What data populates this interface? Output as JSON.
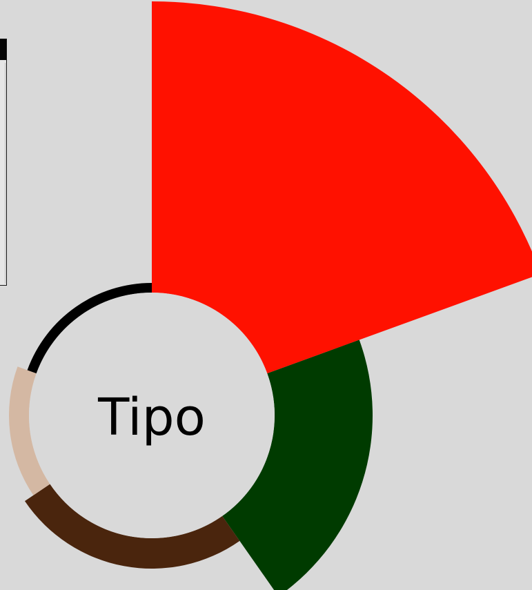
{
  "chart_data": {
    "type": "pie",
    "subtype": "radial-sunburst",
    "center_label": "Tipo",
    "title": "",
    "segments": [
      {
        "start_deg": 0,
        "end_deg": 70,
        "radius": 600,
        "color": "#ff1100"
      },
      {
        "start_deg": 70,
        "end_deg": 145,
        "radius": 320,
        "color": "#003b00"
      },
      {
        "start_deg": 145,
        "end_deg": 236,
        "radius": 222,
        "color": "#4a250d"
      },
      {
        "start_deg": 236,
        "end_deg": 290,
        "radius": 207,
        "color": "#d4b8a3"
      },
      {
        "start_deg": 290,
        "end_deg": 360,
        "radius": 192,
        "color": "#000000"
      }
    ]
  }
}
